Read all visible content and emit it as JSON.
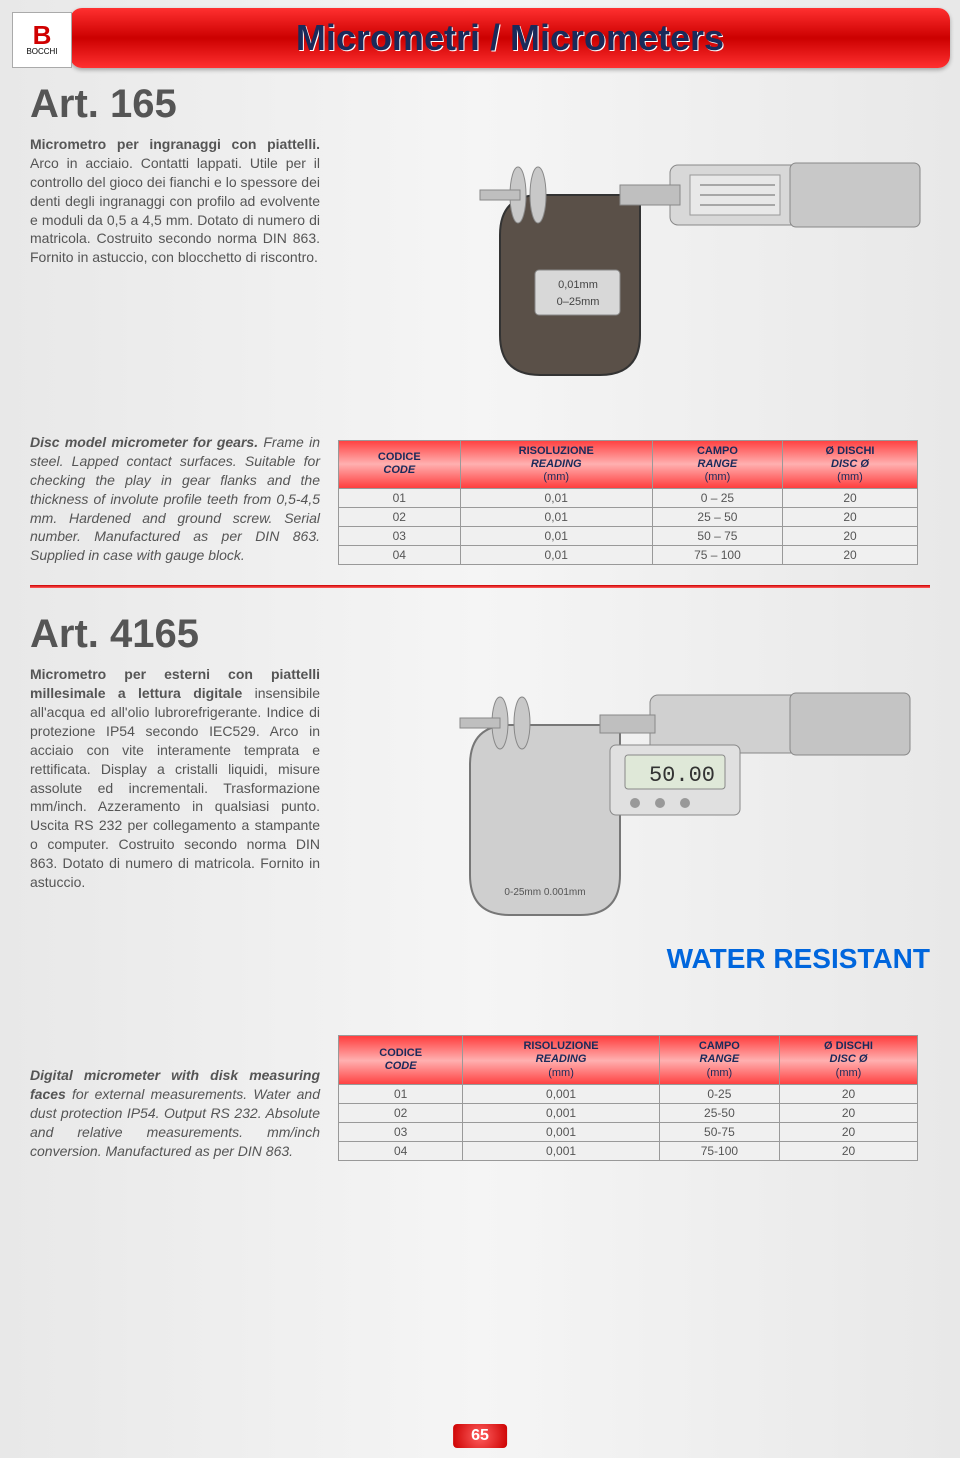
{
  "header": {
    "title": "Micrometri / Micrometers"
  },
  "logo": {
    "mark": "B",
    "brand": "BOCCHI"
  },
  "art165": {
    "title": "Art. 165",
    "desc_it_bold": "Micrometro per ingranaggi con piattelli.",
    "desc_it_rest": " Arco in acciaio. Contatti lappati. Utile per il controllo del gioco dei fianchi e lo spessore dei denti degli ingranaggi con profilo ad evolvente e moduli da 0,5 a 4,5 mm. Dotato di numero di matricola. Costruito secondo norma DIN 863. Fornito in astuccio, con blocchetto di riscontro.",
    "desc_en_bold": "Disc model micrometer for gears.",
    "desc_en_rest": " Frame in steel. Lapped contact surfaces. Suitable for checking the play in gear flanks and the thickness of involute profile teeth from 0,5-4,5 mm. Hardened and ground screw. Serial number. Manufactured as per DIN 863. Supplied in case with gauge block.",
    "table": {
      "headers": [
        {
          "l1": "CODICE",
          "l2": "CODE",
          "unit": ""
        },
        {
          "l1": "RISOLUZIONE",
          "l2": "READING",
          "unit": "(mm)"
        },
        {
          "l1": "CAMPO",
          "l2": "RANGE",
          "unit": "(mm)"
        },
        {
          "l1": "Ø DISCHI",
          "l2": "DISC Ø",
          "unit": "(mm)"
        }
      ],
      "rows": [
        [
          "01",
          "0,01",
          "0 – 25",
          "20"
        ],
        [
          "02",
          "0,01",
          "25 – 50",
          "20"
        ],
        [
          "03",
          "0,01",
          "50 – 75",
          "20"
        ],
        [
          "04",
          "0,01",
          "75 – 100",
          "20"
        ]
      ]
    }
  },
  "art4165": {
    "title": "Art. 4165",
    "desc_it_bold": "Micrometro per esterni con piattelli millesimale a lettura digitale",
    "desc_it_rest": " insensibile all'acqua ed all'olio lubrorefrigerante. Indice di protezione IP54 secondo IEC529. Arco in acciaio con vite interamente temprata e rettificata. Display a cristalli liquidi, misure assolute ed incrementali. Trasformazione mm/inch. Azzeramento in qualsiasi punto. Uscita RS 232 per collegamento a stampante o computer. Costruito secondo norma DIN 863. Dotato di numero di matricola. Fornito in astuccio.",
    "water_resistant": "WATER RESISTANT",
    "desc_en_bold": "Digital micrometer with disk measuring faces",
    "desc_en_rest": " for external measurements. Water and dust protection IP54. Output RS 232. Absolute and relative measurements. mm/inch conversion. Manufactured as per DIN 863.",
    "table": {
      "headers": [
        {
          "l1": "CODICE",
          "l2": "CODE",
          "unit": ""
        },
        {
          "l1": "RISOLUZIONE",
          "l2": "READING",
          "unit": "(mm)"
        },
        {
          "l1": "CAMPO",
          "l2": "RANGE",
          "unit": "(mm)"
        },
        {
          "l1": "Ø DISCHI",
          "l2": "DISC Ø",
          "unit": "(mm)"
        }
      ],
      "rows": [
        [
          "01",
          "0,001",
          "0-25",
          "20"
        ],
        [
          "02",
          "0,001",
          "25-50",
          "20"
        ],
        [
          "03",
          "0,001",
          "50-75",
          "20"
        ],
        [
          "04",
          "0,001",
          "75-100",
          "20"
        ]
      ]
    }
  },
  "page_number": "65",
  "colors": {
    "header_red": "#cc0000",
    "text": "#555555",
    "blue_accent": "#1a2a5a",
    "water_blue": "#0066dd"
  }
}
